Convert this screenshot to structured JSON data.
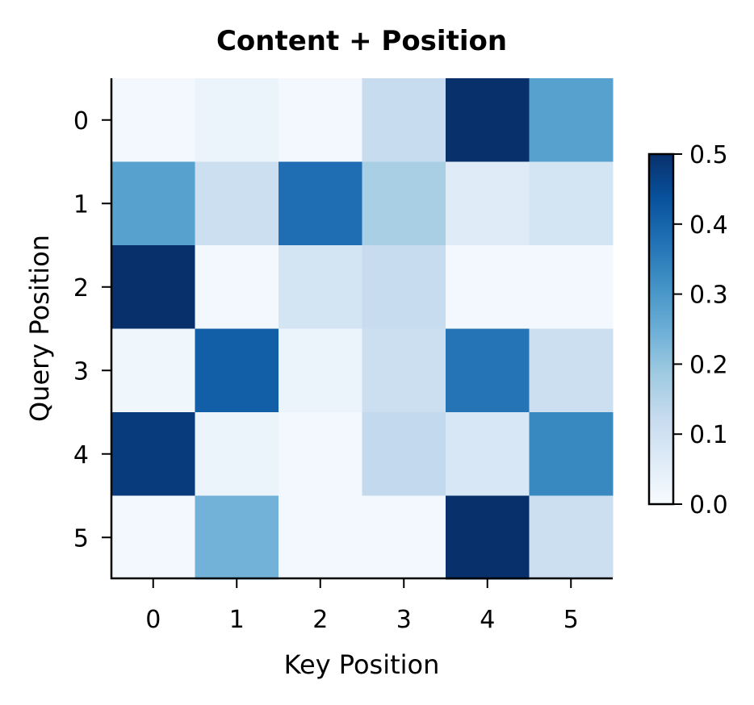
{
  "chart_data": {
    "type": "heatmap",
    "title": "Content + Position",
    "xlabel": "Key Position",
    "ylabel": "Query Position",
    "x_categories": [
      "0",
      "1",
      "2",
      "3",
      "4",
      "5"
    ],
    "y_categories": [
      "0",
      "1",
      "2",
      "3",
      "4",
      "5"
    ],
    "values": [
      [
        0.01,
        0.03,
        0.01,
        0.12,
        0.5,
        0.28
      ],
      [
        0.28,
        0.11,
        0.38,
        0.17,
        0.06,
        0.09
      ],
      [
        0.5,
        0.01,
        0.09,
        0.12,
        0.01,
        0.01
      ],
      [
        0.02,
        0.41,
        0.03,
        0.11,
        0.37,
        0.11
      ],
      [
        0.48,
        0.03,
        0.01,
        0.13,
        0.08,
        0.33
      ],
      [
        0.01,
        0.24,
        0.01,
        0.01,
        0.5,
        0.11
      ]
    ],
    "colorbar": {
      "min": 0.0,
      "max": 0.5,
      "ticks": [
        "0.0",
        "0.1",
        "0.2",
        "0.3",
        "0.4",
        "0.5"
      ],
      "colormap": "Blues"
    }
  }
}
